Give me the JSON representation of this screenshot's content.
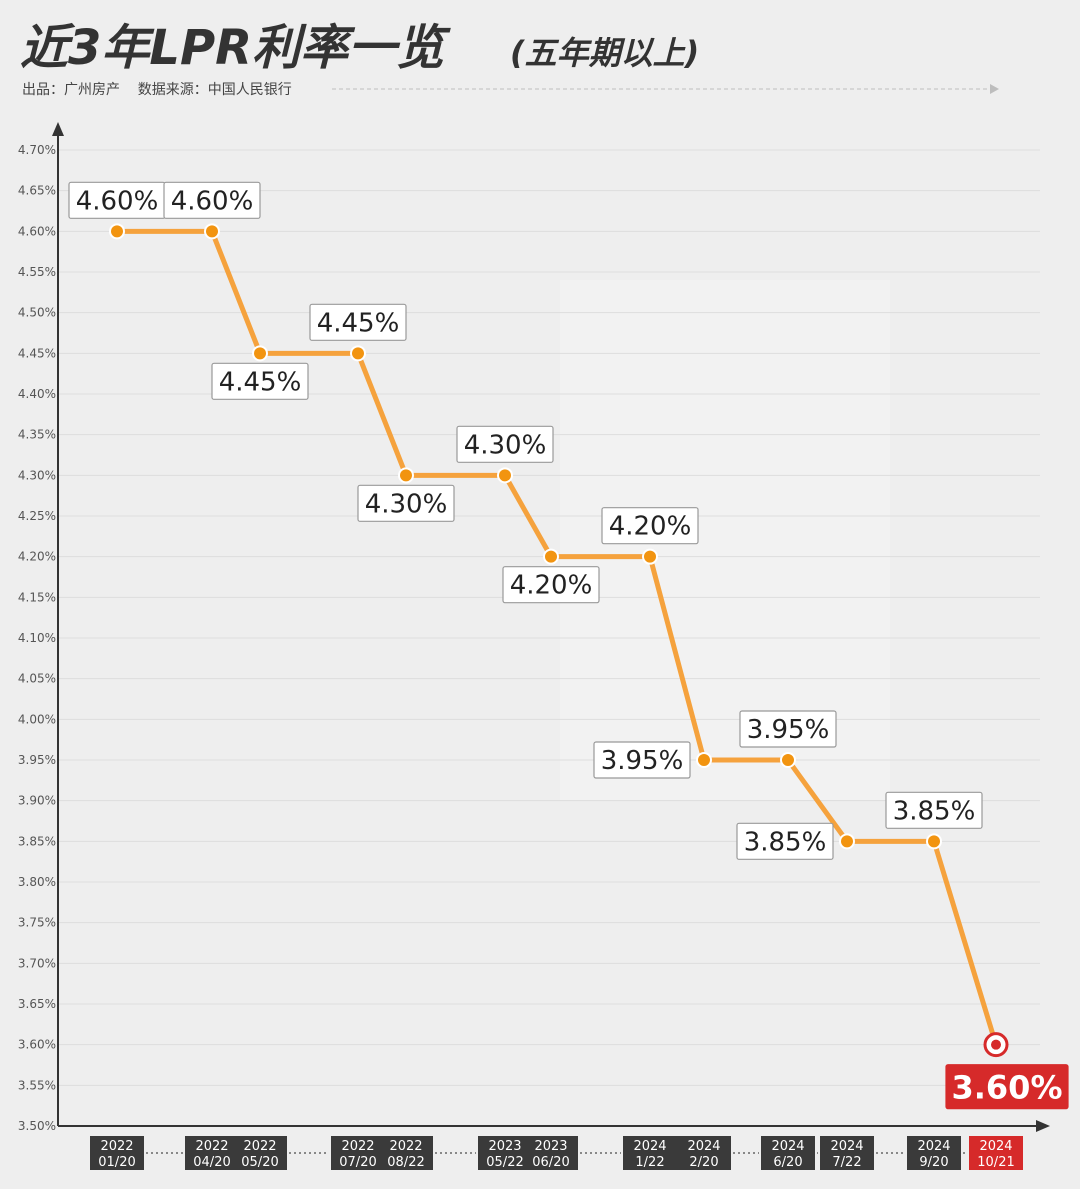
{
  "header": {
    "title_main": "近3年LPR利率一览",
    "title_sub": "(五年期以上)",
    "credits": "出品：广州房产    数据来源：中国人民银行"
  },
  "colors": {
    "line": "#f5a23d",
    "marker": "#f29410",
    "highlight": "#d62a2a",
    "date_box": "#3a3a3a",
    "title": "#333333"
  },
  "chart_data": {
    "type": "line",
    "title": "近3年LPR利率一览(五年期以上)",
    "xlabel": "",
    "ylabel": "",
    "ylim": [
      3.5,
      4.7
    ],
    "y_step": 0.05,
    "y_tick_labels": [
      "3.50%",
      "3.55%",
      "3.60%",
      "3.65%",
      "3.70%",
      "3.75%",
      "3.80%",
      "3.85%",
      "3.90%",
      "3.95%",
      "4.00%",
      "4.05%",
      "4.10%",
      "4.15%",
      "4.20%",
      "4.25%",
      "4.30%",
      "4.35%",
      "4.40%",
      "4.45%",
      "4.50%",
      "4.55%",
      "4.60%",
      "4.65%",
      "4.70%"
    ],
    "categories": [
      "2022 01/20",
      "2022 04/20",
      "2022 05/20",
      "2022 07/20",
      "2022 08/22",
      "2023 05/22",
      "2023 06/20",
      "2024 1/22",
      "2024 2/20",
      "2024 6/20",
      "2024 7/22",
      "2024 9/20",
      "2024 10/21"
    ],
    "values": [
      4.6,
      4.6,
      4.45,
      4.45,
      4.3,
      4.3,
      4.2,
      4.2,
      3.95,
      3.95,
      3.85,
      3.85,
      3.6
    ],
    "data_labels": [
      "4.60%",
      "4.60%",
      "4.45%",
      "4.45%",
      "4.30%",
      "4.30%",
      "4.20%",
      "4.20%",
      "3.95%",
      "3.95%",
      "3.85%",
      "3.85%",
      "3.60%"
    ],
    "label_position": [
      "above",
      "above",
      "below",
      "above",
      "below",
      "above",
      "below",
      "above",
      "left",
      "above",
      "left",
      "above",
      "below"
    ],
    "highlight_index": 12,
    "grid": true,
    "legend": "none"
  }
}
